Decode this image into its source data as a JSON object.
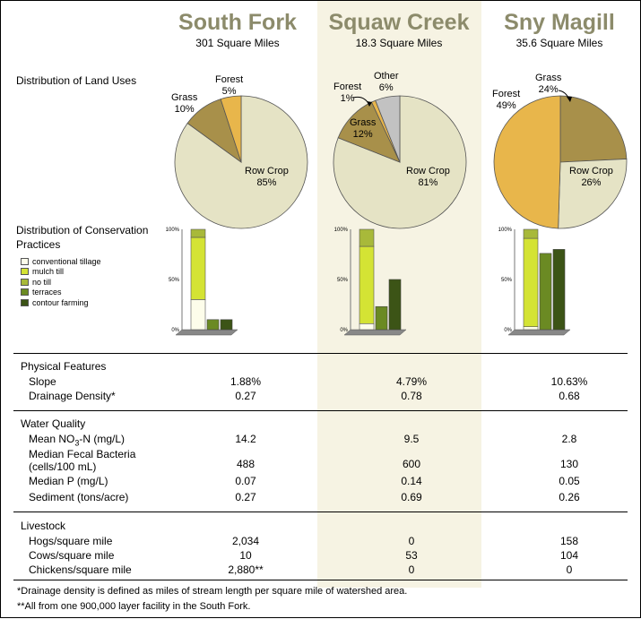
{
  "watersheds": [
    {
      "name": "South Fork",
      "area": "301 Square Miles"
    },
    {
      "name": "Squaw Creek",
      "area": "18.3 Square Miles"
    },
    {
      "name": "Sny Magill",
      "area": "35.6 Square Miles"
    }
  ],
  "row_labels": {
    "land_uses": "Distribution of Land Uses",
    "conservation": "Distribution of Conservation Practices"
  },
  "legend": [
    {
      "label": "conventional tillage",
      "color": "#fdfdea"
    },
    {
      "label": "mulch till",
      "color": "#d4e334"
    },
    {
      "label": "no till",
      "color": "#a8b93a"
    },
    {
      "label": "terraces",
      "color": "#6b8a23"
    },
    {
      "label": "contour farming",
      "color": "#3c5416"
    }
  ],
  "table": {
    "sections": [
      {
        "title": "Physical Features",
        "rows": [
          {
            "label": "Slope",
            "values": [
              "1.88%",
              "4.79%",
              "10.63%"
            ]
          },
          {
            "label": "Drainage Density*",
            "values": [
              "0.27",
              "0.78",
              "0.68"
            ]
          }
        ]
      },
      {
        "title": "Water Quality",
        "rows": [
          {
            "label": "Mean NO3-N (mg/L)",
            "values": [
              "14.2",
              "9.5",
              "2.8"
            ]
          },
          {
            "label": "Median Fecal Bacteria (cells/100 mL)",
            "values": [
              "488",
              "600",
              "130"
            ]
          },
          {
            "label": "Median P (mg/L)",
            "values": [
              "0.07",
              "0.14",
              "0.05"
            ]
          },
          {
            "label": "Sediment (tons/acre)",
            "values": [
              "0.27",
              "0.69",
              "0.26"
            ]
          }
        ]
      },
      {
        "title": "Livestock",
        "rows": [
          {
            "label": "Hogs/square mile",
            "values": [
              "2,034",
              "0",
              "158"
            ]
          },
          {
            "label": "Cows/square mile",
            "values": [
              "10",
              "53",
              "104"
            ]
          },
          {
            "label": "Chickens/square mile",
            "values": [
              "2,880**",
              "0",
              "0"
            ]
          }
        ]
      }
    ]
  },
  "footnotes": [
    "*Drainage density is defined as miles of stream length per square mile of watershed area.",
    "**All from one 900,000 layer facility in the South Fork."
  ],
  "chart_data": [
    {
      "type": "pie",
      "watershed": "South Fork",
      "slices": [
        {
          "label": "Row Crop",
          "value": 85,
          "text": "85%",
          "color": "#e5e3c5"
        },
        {
          "label": "Grass",
          "value": 10,
          "text": "10%",
          "color": "#a8904a"
        },
        {
          "label": "Forest",
          "value": 5,
          "text": "5%",
          "color": "#e8b64b"
        }
      ]
    },
    {
      "type": "pie",
      "watershed": "Squaw Creek",
      "slices": [
        {
          "label": "Row Crop",
          "value": 81,
          "text": "81%",
          "color": "#e5e3c5"
        },
        {
          "label": "Grass",
          "value": 12,
          "text": "12%",
          "color": "#a8904a"
        },
        {
          "label": "Forest",
          "value": 1,
          "text": "1%",
          "color": "#e8b64b"
        },
        {
          "label": "Other",
          "value": 6,
          "text": "6%",
          "color": "#c2c2c2"
        }
      ]
    },
    {
      "type": "pie",
      "watershed": "Sny Magill",
      "slices": [
        {
          "label": "Grass",
          "value": 24,
          "text": "24%",
          "color": "#a8904a"
        },
        {
          "label": "Row Crop",
          "value": 26,
          "text": "26%",
          "color": "#e5e3c5"
        },
        {
          "label": "Forest",
          "value": 49,
          "text": "49%",
          "color": "#e8b64b"
        }
      ]
    },
    {
      "type": "bar",
      "watershed": "South Fork",
      "ylim": [
        0,
        100
      ],
      "ticks": [
        "0%",
        "50%",
        "100%"
      ],
      "stack": [
        {
          "practice": "conventional tillage",
          "value": 30
        },
        {
          "practice": "mulch till",
          "value": 62
        },
        {
          "practice": "no till",
          "value": 8
        }
      ],
      "bars": [
        {
          "practice": "terraces",
          "value": 10
        },
        {
          "practice": "contour farming",
          "value": 10
        }
      ]
    },
    {
      "type": "bar",
      "watershed": "Squaw Creek",
      "ylim": [
        0,
        100
      ],
      "ticks": [
        "0%",
        "50%",
        "100%"
      ],
      "stack": [
        {
          "practice": "conventional tillage",
          "value": 6
        },
        {
          "practice": "mulch till",
          "value": 77
        },
        {
          "practice": "no till",
          "value": 17
        }
      ],
      "bars": [
        {
          "practice": "terraces",
          "value": 23
        },
        {
          "practice": "contour farming",
          "value": 50
        }
      ]
    },
    {
      "type": "bar",
      "watershed": "Sny Magill",
      "ylim": [
        0,
        100
      ],
      "ticks": [
        "0%",
        "50%",
        "100%"
      ],
      "stack": [
        {
          "practice": "conventional tillage",
          "value": 3
        },
        {
          "practice": "mulch till",
          "value": 88
        },
        {
          "practice": "no till",
          "value": 9
        }
      ],
      "bars": [
        {
          "practice": "terraces",
          "value": 76
        },
        {
          "practice": "contour farming",
          "value": 80
        }
      ]
    }
  ]
}
